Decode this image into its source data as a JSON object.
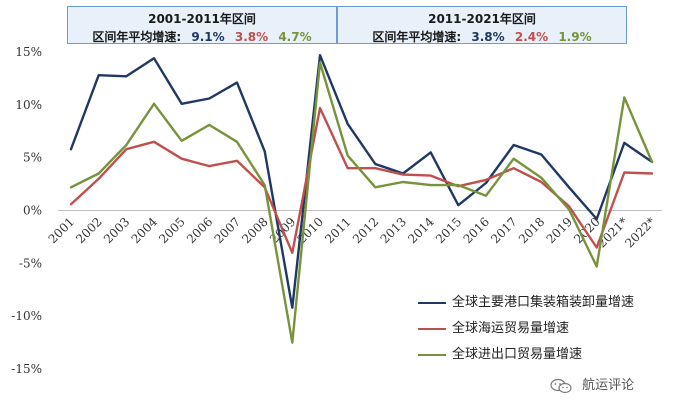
{
  "header": {
    "left": {
      "title": "2001-2011年区间",
      "label": "区间年平均增速:",
      "values": [
        "9.1%",
        "3.8%",
        "4.7%"
      ]
    },
    "right": {
      "title": "2011-2021年区间",
      "label": "区间年平均增速:",
      "values": [
        "3.8%",
        "2.4%",
        "1.9%"
      ]
    }
  },
  "watermark": "航运评论",
  "chart_data": {
    "type": "line",
    "categories": [
      "2001",
      "2002",
      "2003",
      "2004",
      "2005",
      "2006",
      "2007",
      "2008",
      "2009",
      "2010",
      "2011",
      "2012",
      "2013",
      "2014",
      "2015",
      "2016",
      "2017",
      "2018",
      "2019",
      "2020",
      "2021*",
      "2022*"
    ],
    "ylim": [
      -15,
      15
    ],
    "yticks": [
      15,
      10,
      5,
      0,
      -5,
      -10,
      -15
    ],
    "ytick_labels": [
      "15%",
      "10%",
      "5%",
      "0%",
      "-5%",
      "-10%",
      "-15%"
    ],
    "grid": false,
    "legend_position": "bottom-right",
    "series": [
      {
        "name": "全球主要港口集装箱装卸量增速",
        "color": "#1f3864",
        "values": [
          5.8,
          12.8,
          12.7,
          14.4,
          10.1,
          10.6,
          12.1,
          5.6,
          -9.2,
          14.7,
          8.2,
          4.4,
          3.5,
          5.5,
          0.5,
          2.6,
          6.2,
          5.3,
          2.2,
          -0.8,
          6.4,
          4.6
        ]
      },
      {
        "name": "全球海运贸易量增速",
        "color": "#c0504d",
        "values": [
          0.6,
          3.0,
          5.8,
          6.5,
          4.9,
          4.2,
          4.7,
          2.2,
          -4.0,
          9.7,
          4.0,
          4.0,
          3.4,
          3.3,
          2.3,
          2.9,
          4.0,
          2.7,
          0.4,
          -3.5,
          3.6,
          3.5
        ]
      },
      {
        "name": "全球进出口贸易量增速",
        "color": "#77933c",
        "values": [
          2.2,
          3.5,
          6.2,
          10.1,
          6.6,
          8.1,
          6.5,
          2.4,
          -12.5,
          14.0,
          5.2,
          2.2,
          2.7,
          2.4,
          2.4,
          1.4,
          4.9,
          3.1,
          0.1,
          -5.3,
          10.7,
          4.6
        ]
      }
    ]
  }
}
